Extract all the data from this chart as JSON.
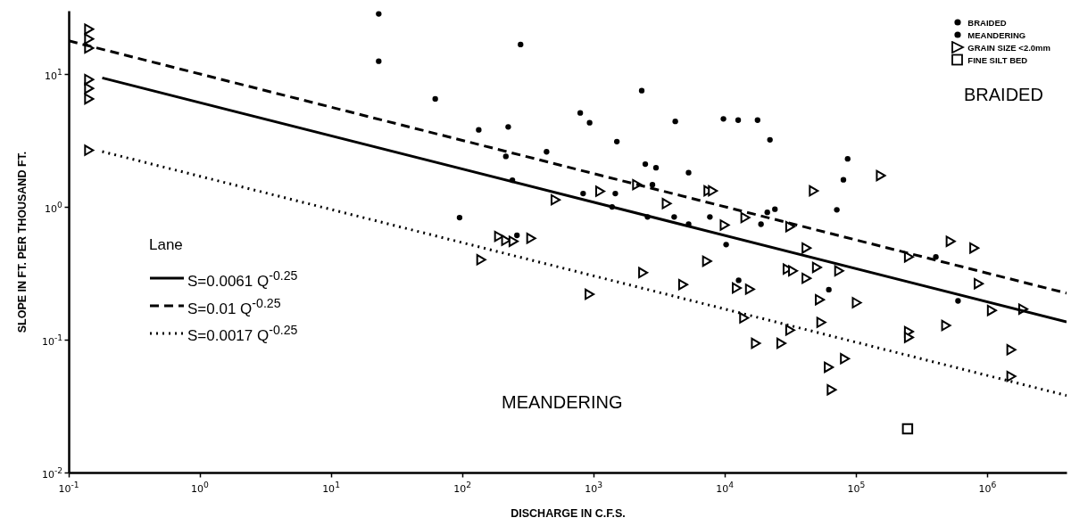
{
  "chart_data": {
    "type": "scatter",
    "xlabel": "DISCHARGE IN C.F.S.",
    "ylabel": "SLOPE IN FT. PER THOUSAND FT.",
    "log": "xy",
    "grid": false,
    "legend": "top right",
    "legend_title": "Lane",
    "xlim": [
      0.1,
      4000000
    ],
    "ylim": [
      0.01,
      30
    ],
    "xticks": [
      {
        "value": 0.1,
        "label": "10$^{-1}$"
      },
      {
        "value": 1,
        "label": "10$^{0}$"
      },
      {
        "value": 10,
        "label": "10$^{1}$"
      },
      {
        "value": 100,
        "label": "10$^{2}$"
      },
      {
        "value": 1000,
        "label": "10$^{3}$"
      },
      {
        "value": 10000,
        "label": "10$^{4}$"
      },
      {
        "value": 100000,
        "label": "10$^{5}$"
      },
      {
        "value": 1000000,
        "label": "10$^{6}$"
      }
    ],
    "yticks": [
      {
        "value": 0.01,
        "label": "10$^{-2}$"
      },
      {
        "value": 0.1,
        "label": "10$^{-1}$"
      },
      {
        "value": 1,
        "label": "10$^{0}$"
      },
      {
        "value": 10,
        "label": "10$^{1}$"
      }
    ],
    "annotations": [
      "BRAIDED",
      "MEANDERING"
    ],
    "series": [
      {
        "name": "BRAIDED",
        "marker": "circle",
        "color": "#000000",
        "x": [
          2320,
          4180,
          2980,
          95,
          1380,
          2570,
          5280,
          9730,
          22000,
          86000,
          79800,
          18800
        ],
        "values": [
          7.5,
          4.4,
          1.97,
          0.83,
          1.0,
          0.84,
          0.74,
          4.6,
          3.2,
          2.3,
          1.6,
          0.74
        ]
      },
      {
        "name": "MEANDERING",
        "marker": "circle",
        "color": "#000000",
        "x": [
          23,
          23,
          277,
          62,
          789,
          930,
          1500,
          133,
          223,
          437,
          2470,
          5280,
          260,
          214,
          240,
          830,
          1460,
          2800,
          4100,
          7670,
          12600,
          17700,
          71100,
          10200,
          21000,
          24000,
          404000,
          596000,
          61800,
          12700
        ],
        "values": [
          28.4,
          12.5,
          16.7,
          6.5,
          5.1,
          4.3,
          3.1,
          3.8,
          4.0,
          2.6,
          2.1,
          1.81,
          0.61,
          2.4,
          1.59,
          1.26,
          1.26,
          1.47,
          0.84,
          0.84,
          4.5,
          4.5,
          0.95,
          0.52,
          0.91,
          0.96,
          0.42,
          0.196,
          0.238,
          0.28
        ]
      },
      {
        "name": "GRAIN SIZE <2.0mm",
        "marker": "triangle",
        "color": "#000000",
        "x": [
          0.143,
          0.143,
          0.143,
          0.143,
          0.143,
          0.143,
          0.143,
          512,
          1120,
          2140,
          3600,
          7480,
          190,
          215,
          245,
          334,
          139,
          7300,
          930,
          2380,
          4800,
          8090,
          47500,
          154000,
          9950,
          14300,
          31400,
          41800,
          252000,
          524000,
          793000,
          30000,
          33000,
          41800,
          50200,
          74100,
          12300,
          15500,
          52800,
          101000,
          14000,
          31400,
          54200,
          17200,
          26900,
          82000,
          61800,
          65000,
          252000,
          252000,
          484000,
          1080000,
          1870000,
          857000,
          1520000,
          1520000
        ],
        "values": [
          21.8,
          18.4,
          15.7,
          9.1,
          7.8,
          6.5,
          2.67,
          1.13,
          1.31,
          1.47,
          1.06,
          1.32,
          0.6,
          0.56,
          0.55,
          0.58,
          0.4,
          0.39,
          0.22,
          0.32,
          0.26,
          1.32,
          1.32,
          1.72,
          0.73,
          0.83,
          0.71,
          0.49,
          0.42,
          0.55,
          0.49,
          0.34,
          0.33,
          0.29,
          0.35,
          0.33,
          0.245,
          0.24,
          0.2,
          0.19,
          0.146,
          0.118,
          0.135,
          0.094,
          0.094,
          0.072,
          0.062,
          0.042,
          0.115,
          0.104,
          0.128,
          0.166,
          0.17,
          0.264,
          0.084,
          0.053
        ]
      },
      {
        "name": "FINE SILT BED",
        "marker": "square",
        "color": "#000000",
        "x": [
          246000
        ],
        "values": [
          0.0213
        ]
      },
      {
        "name": "S=0.0061 Q$^{-0.25}$",
        "type": "line",
        "line_style": "solid",
        "marker": "none",
        "color": "#000000",
        "x": [
          0.18,
          4000000
        ],
        "values": [
          9.36,
          0.136
        ]
      },
      {
        "name": "S=0.01 Q$^{-0.25}$",
        "type": "line",
        "line_style": "dashed",
        "marker": "none",
        "color": "#000000",
        "x": [
          0.1,
          4000000
        ],
        "values": [
          17.8,
          0.224
        ]
      },
      {
        "name": "S=0.0017 Q$^{-0.25}$",
        "type": "line",
        "line_style": "dotted",
        "marker": "none",
        "color": "#000000",
        "x": [
          0.18,
          4000000
        ],
        "values": [
          2.61,
          0.038
        ]
      }
    ]
  }
}
